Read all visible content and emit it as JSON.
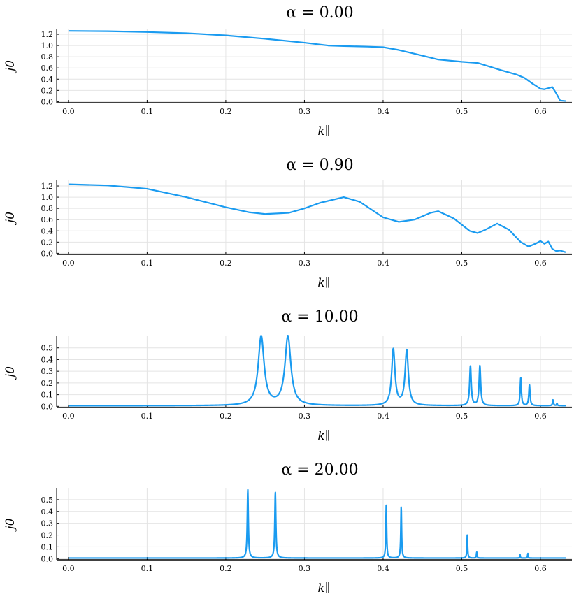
{
  "chart_data": [
    {
      "type": "line",
      "title": "α = 0.00",
      "xlabel": "k∥",
      "ylabel": "j0",
      "xlim": [
        -0.015,
        0.64
      ],
      "ylim": [
        -0.02,
        1.3
      ],
      "xticks": [
        "0.0",
        "0.1",
        "0.2",
        "0.3",
        "0.4",
        "0.5",
        "0.6"
      ],
      "xtick_values": [
        0,
        0.1,
        0.2,
        0.3,
        0.4,
        0.5,
        0.6
      ],
      "yticks": [
        "0.0",
        "0.2",
        "0.4",
        "0.6",
        "0.8",
        "1.0",
        "1.2"
      ],
      "ytick_values": [
        0,
        0.2,
        0.4,
        0.6,
        0.8,
        1.0,
        1.2
      ],
      "color": "#1a9bf0",
      "x": [
        0.0,
        0.05,
        0.1,
        0.15,
        0.2,
        0.25,
        0.3,
        0.33,
        0.35,
        0.38,
        0.4,
        0.42,
        0.45,
        0.47,
        0.5,
        0.52,
        0.55,
        0.57,
        0.58,
        0.59,
        0.6,
        0.605,
        0.61,
        0.615,
        0.62,
        0.625,
        0.632
      ],
      "y": [
        1.26,
        1.255,
        1.24,
        1.22,
        1.18,
        1.12,
        1.05,
        1.0,
        0.99,
        0.98,
        0.97,
        0.92,
        0.82,
        0.75,
        0.71,
        0.69,
        0.56,
        0.48,
        0.42,
        0.32,
        0.23,
        0.22,
        0.24,
        0.26,
        0.15,
        0.02,
        0.01
      ]
    },
    {
      "type": "line",
      "title": "α = 0.90",
      "xlabel": "k∥",
      "ylabel": "j0",
      "xlim": [
        -0.015,
        0.64
      ],
      "ylim": [
        -0.02,
        1.3
      ],
      "xticks": [
        "0.0",
        "0.1",
        "0.2",
        "0.3",
        "0.4",
        "0.5",
        "0.6"
      ],
      "xtick_values": [
        0,
        0.1,
        0.2,
        0.3,
        0.4,
        0.5,
        0.6
      ],
      "yticks": [
        "0.0",
        "0.2",
        "0.4",
        "0.6",
        "0.8",
        "1.0",
        "1.2"
      ],
      "ytick_values": [
        0,
        0.2,
        0.4,
        0.6,
        0.8,
        1.0,
        1.2
      ],
      "color": "#1a9bf0",
      "x": [
        0.0,
        0.05,
        0.1,
        0.15,
        0.2,
        0.23,
        0.25,
        0.28,
        0.3,
        0.32,
        0.35,
        0.37,
        0.4,
        0.42,
        0.44,
        0.46,
        0.47,
        0.49,
        0.51,
        0.52,
        0.53,
        0.545,
        0.56,
        0.575,
        0.585,
        0.595,
        0.6,
        0.605,
        0.61,
        0.615,
        0.62,
        0.625,
        0.632
      ],
      "y": [
        1.23,
        1.21,
        1.15,
        1.0,
        0.82,
        0.73,
        0.7,
        0.72,
        0.8,
        0.9,
        1.0,
        0.92,
        0.64,
        0.56,
        0.6,
        0.72,
        0.75,
        0.62,
        0.4,
        0.36,
        0.42,
        0.53,
        0.42,
        0.2,
        0.12,
        0.18,
        0.22,
        0.17,
        0.21,
        0.08,
        0.04,
        0.05,
        0.02
      ]
    },
    {
      "type": "line",
      "title": "α = 10.00",
      "xlabel": "k∥",
      "ylabel": "j0",
      "xlim": [
        -0.015,
        0.64
      ],
      "ylim": [
        -0.01,
        0.6
      ],
      "xticks": [
        "0.0",
        "0.1",
        "0.2",
        "0.3",
        "0.4",
        "0.5",
        "0.6"
      ],
      "xtick_values": [
        0,
        0.1,
        0.2,
        0.3,
        0.4,
        0.5,
        0.6
      ],
      "yticks": [
        "0.0",
        "0.1",
        "0.2",
        "0.3",
        "0.4",
        "0.5"
      ],
      "ytick_values": [
        0,
        0.1,
        0.2,
        0.3,
        0.4,
        0.5
      ],
      "color": "#1a9bf0",
      "baseline": 0.005,
      "x_end": 0.632,
      "peaks": [
        {
          "x": 0.245,
          "height": 0.59,
          "width": 0.0045
        },
        {
          "x": 0.279,
          "height": 0.59,
          "width": 0.0045
        },
        {
          "x": 0.413,
          "height": 0.48,
          "width": 0.0025
        },
        {
          "x": 0.43,
          "height": 0.47,
          "width": 0.0025
        },
        {
          "x": 0.511,
          "height": 0.34,
          "width": 0.0012
        },
        {
          "x": 0.523,
          "height": 0.34,
          "width": 0.0012
        },
        {
          "x": 0.575,
          "height": 0.24,
          "width": 0.0009
        },
        {
          "x": 0.586,
          "height": 0.18,
          "width": 0.0009
        },
        {
          "x": 0.616,
          "height": 0.05,
          "width": 0.0007
        },
        {
          "x": 0.621,
          "height": 0.02,
          "width": 0.0006
        }
      ]
    },
    {
      "type": "line",
      "title": "α = 20.00",
      "xlabel": "k∥",
      "ylabel": "j0",
      "xlim": [
        -0.015,
        0.64
      ],
      "ylim": [
        -0.01,
        0.6
      ],
      "xticks": [
        "0.0",
        "0.1",
        "0.2",
        "0.3",
        "0.4",
        "0.5",
        "0.6"
      ],
      "xtick_values": [
        0,
        0.1,
        0.2,
        0.3,
        0.4,
        0.5,
        0.6
      ],
      "yticks": [
        "0.0",
        "0.1",
        "0.2",
        "0.3",
        "0.4",
        "0.5"
      ],
      "ytick_values": [
        0,
        0.1,
        0.2,
        0.3,
        0.4,
        0.5
      ],
      "color": "#1a9bf0",
      "baseline": 0.005,
      "x_end": 0.632,
      "peaks": [
        {
          "x": 0.228,
          "height": 0.58,
          "width": 0.0008
        },
        {
          "x": 0.263,
          "height": 0.56,
          "width": 0.0008
        },
        {
          "x": 0.404,
          "height": 0.45,
          "width": 0.0006
        },
        {
          "x": 0.423,
          "height": 0.44,
          "width": 0.0006
        },
        {
          "x": 0.507,
          "height": 0.2,
          "width": 0.0005
        },
        {
          "x": 0.519,
          "height": 0.05,
          "width": 0.0005
        },
        {
          "x": 0.574,
          "height": 0.03,
          "width": 0.0004
        },
        {
          "x": 0.584,
          "height": 0.04,
          "width": 0.0004
        }
      ]
    }
  ]
}
